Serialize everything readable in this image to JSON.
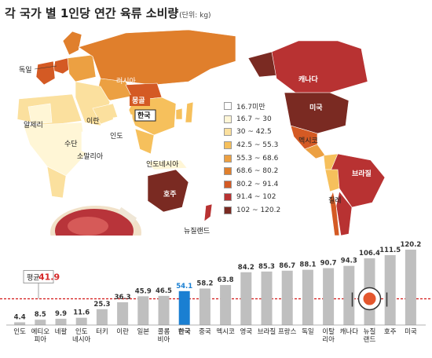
{
  "header": {
    "title": "각 국가 별 1인당 연간 육류 소비량",
    "unit": "(단위: kg)"
  },
  "map": {
    "labels": {
      "germany": "독일",
      "russia": "러시아",
      "mongolia": "몽골",
      "korea": "한국",
      "iran": "이란",
      "algeria": "알제리",
      "sudan": "수단",
      "india": "인도",
      "somalia": "소말리아",
      "indonesia": "인도네시아",
      "australia": "호주",
      "new_zealand": "뉴질랜드",
      "canada": "캐나다",
      "usa": "미국",
      "mexico": "멕시코",
      "brazil": "브라질",
      "chile": "칠레"
    },
    "legend": [
      {
        "label": "16.7미만",
        "color": "#ffffff"
      },
      {
        "label": "16.7 ~ 30",
        "color": "#fff6d6"
      },
      {
        "label": "30 ~ 42.5",
        "color": "#fbe09e"
      },
      {
        "label": "42.5 ~ 55.3",
        "color": "#f6c05c"
      },
      {
        "label": "55.3 ~ 68.6",
        "color": "#eca042"
      },
      {
        "label": "68.6 ~ 80.2",
        "color": "#e07f2c"
      },
      {
        "label": "80.2 ~ 91.4",
        "color": "#d45a24"
      },
      {
        "label": "91.4 ~ 102",
        "color": "#b83232"
      },
      {
        "label": "102 ~ 120.2",
        "color": "#7a2a22"
      }
    ]
  },
  "chart_data": {
    "type": "bar",
    "categories": [
      "인도",
      "에티오\n피아",
      "네팔",
      "인도\n네시아",
      "터키",
      "이란",
      "일본",
      "콜롬\n비아",
      "한국",
      "중국",
      "멕시코",
      "영국",
      "브라질",
      "프랑스",
      "독일",
      "이탈\n리아",
      "캐나다",
      "뉴질\n랜드",
      "호주",
      "미국"
    ],
    "values": [
      4.4,
      8.5,
      9.9,
      11.6,
      25.3,
      36.3,
      45.9,
      46.5,
      54.1,
      58.2,
      63.8,
      84.2,
      85.3,
      86.7,
      88.1,
      90.7,
      94.3,
      106.4,
      111.5,
      120.2
    ],
    "value_labels": [
      "4.4",
      "8.5",
      "9.9",
      "11.6",
      "25.3",
      "36.3",
      "45.9",
      "46.5",
      "54.1",
      "58.2",
      "63.8",
      "84.2",
      "85.3",
      "86.7",
      "88.1",
      "90.7",
      "94.3",
      "106.4",
      "111.5",
      "120.2"
    ],
    "highlight_category": "한국",
    "average": {
      "label": "평균",
      "value": 41.9,
      "value_label": "41.9"
    },
    "colors": {
      "bar": "#bfbfbf",
      "highlight": "#1a7fd2",
      "average_line": "#d62828",
      "average_text": "#d62828"
    }
  }
}
